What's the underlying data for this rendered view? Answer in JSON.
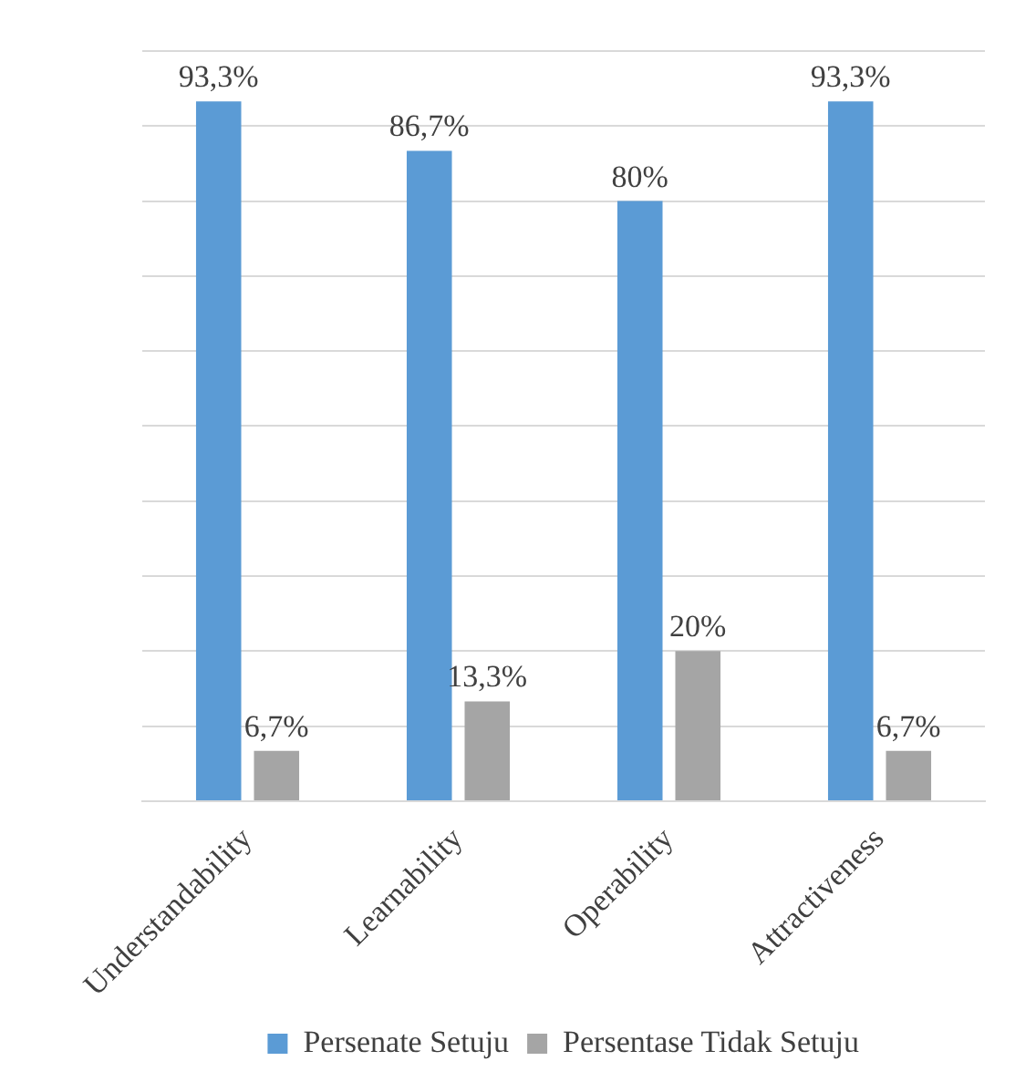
{
  "chart_data": {
    "type": "bar",
    "categories": [
      "Understandability",
      "Learnability",
      "Operability",
      "Attractiveness"
    ],
    "series": [
      {
        "name": "Persenate Setuju",
        "color": "#5b9bd5",
        "values": [
          93.3,
          86.7,
          80,
          93.3
        ],
        "value_labels": [
          "93,3%",
          "86,7%",
          "80%",
          "93,3%"
        ]
      },
      {
        "name": "Persentase Tidak Setuju",
        "color": "#a5a5a5",
        "values": [
          6.7,
          13.3,
          20,
          6.7
        ],
        "value_labels": [
          "6,7%",
          "13,3%",
          "20%",
          "6,7%"
        ]
      }
    ],
    "ylim": [
      0,
      100
    ],
    "yticks": [
      {
        "value": 0,
        "label": null
      },
      {
        "value": 10,
        "label": null
      },
      {
        "value": 20,
        "label": null
      },
      {
        "value": 30,
        "label": null
      },
      {
        "value": 40,
        "label": null
      },
      {
        "value": 50,
        "label": null
      },
      {
        "value": 60,
        "label": null
      },
      {
        "value": 70,
        "label": null
      },
      {
        "value": 80,
        "label": null
      },
      {
        "value": 90,
        "label": null
      },
      {
        "value": 100,
        "label": null
      }
    ],
    "tick_labels": "x",
    "grid": "y",
    "legend": "bottom"
  }
}
